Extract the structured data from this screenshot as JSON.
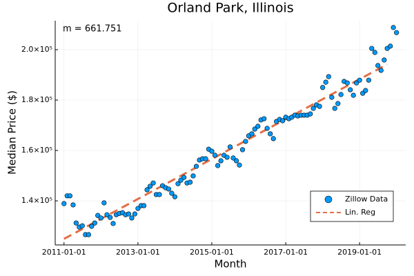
{
  "chart_data": {
    "type": "scatter",
    "title": "Orland Park, Illinois",
    "xlabel": "Month",
    "ylabel": "Median Price ($)",
    "annotation": "m = 661.751",
    "xlim": [
      "2010-10-06",
      "2020-04-01"
    ],
    "xticks": [
      "2011-01-01",
      "2013-01-01",
      "2015-01-01",
      "2017-01-01",
      "2019-01-01"
    ],
    "ylim": [
      122500,
      211500
    ],
    "yticks": [
      {
        "value": 140000,
        "label": "1.4×10⁵"
      },
      {
        "value": 160000,
        "label": "1.6×10⁵"
      },
      {
        "value": 180000,
        "label": "1.8×10⁵"
      },
      {
        "value": 200000,
        "label": "2.0×10⁵"
      }
    ],
    "grid": true,
    "legend": "bottom right",
    "series": [
      {
        "name": "Zillow Data",
        "color": "#009af9",
        "type": "scatter",
        "x": [
          "2011-01-01",
          "2011-02-01",
          "2011-03-01",
          "2011-04-01",
          "2011-05-01",
          "2011-06-01",
          "2011-07-01",
          "2011-08-01",
          "2011-09-01",
          "2011-10-01",
          "2011-11-01",
          "2011-12-01",
          "2012-01-01",
          "2012-02-01",
          "2012-03-01",
          "2012-04-01",
          "2012-05-01",
          "2012-06-01",
          "2012-07-01",
          "2012-08-01",
          "2012-09-01",
          "2012-10-01",
          "2012-11-01",
          "2012-12-01",
          "2013-01-01",
          "2013-02-01",
          "2013-03-01",
          "2013-04-01",
          "2013-05-01",
          "2013-06-01",
          "2013-07-01",
          "2013-08-01",
          "2013-09-01",
          "2013-10-01",
          "2013-11-01",
          "2013-12-01",
          "2014-01-01",
          "2014-02-01",
          "2014-03-01",
          "2014-04-01",
          "2014-05-01",
          "2014-06-01",
          "2014-07-01",
          "2014-08-01",
          "2014-09-01",
          "2014-10-01",
          "2014-11-01",
          "2014-12-01",
          "2015-01-01",
          "2015-02-01",
          "2015-03-01",
          "2015-04-01",
          "2015-05-01",
          "2015-06-01",
          "2015-07-01",
          "2015-08-01",
          "2015-09-01",
          "2015-10-01",
          "2015-11-01",
          "2015-12-01",
          "2016-01-01",
          "2016-02-01",
          "2016-03-01",
          "2016-04-01",
          "2016-05-01",
          "2016-06-01",
          "2016-07-01",
          "2016-08-01",
          "2016-09-01",
          "2016-10-01",
          "2016-11-01",
          "2016-12-01",
          "2017-01-01",
          "2017-02-01",
          "2017-03-01",
          "2017-04-01",
          "2017-05-01",
          "2017-06-01",
          "2017-07-01",
          "2017-08-01",
          "2017-09-01",
          "2017-10-01",
          "2017-11-01",
          "2017-12-01",
          "2018-01-01",
          "2018-02-01",
          "2018-03-01",
          "2018-04-01",
          "2018-05-01",
          "2018-06-01",
          "2018-07-01",
          "2018-08-01",
          "2018-09-01",
          "2018-10-01",
          "2018-11-01",
          "2018-12-01",
          "2019-01-01",
          "2019-02-01",
          "2019-03-01",
          "2019-04-01",
          "2019-05-01",
          "2019-06-01",
          "2019-07-01",
          "2019-08-01",
          "2019-09-01",
          "2019-10-01",
          "2019-11-01",
          "2019-12-01",
          "2020-01-01"
        ],
        "values": [
          138900,
          142000,
          142000,
          138400,
          131200,
          129600,
          130100,
          126600,
          126600,
          129900,
          131200,
          134200,
          133200,
          139200,
          134500,
          133400,
          131000,
          134500,
          135000,
          135300,
          134500,
          134800,
          133200,
          134800,
          137000,
          138100,
          138100,
          144400,
          145800,
          147100,
          142500,
          142500,
          146000,
          145200,
          144700,
          143000,
          141600,
          146800,
          148200,
          149300,
          147100,
          147400,
          149900,
          153700,
          156200,
          156700,
          156700,
          160500,
          159700,
          158100,
          154000,
          155900,
          158100,
          157300,
          161400,
          157000,
          155900,
          154200,
          160300,
          163600,
          165800,
          166600,
          168500,
          169600,
          172100,
          172600,
          168800,
          166600,
          164700,
          171500,
          172300,
          171800,
          173200,
          172600,
          173200,
          174000,
          173700,
          174000,
          174000,
          174000,
          174500,
          176700,
          178100,
          177500,
          185000,
          187100,
          189300,
          181100,
          176700,
          178600,
          182200,
          187400,
          186800,
          184100,
          181900,
          186800,
          187900,
          182700,
          183800,
          187900,
          200500,
          198900,
          193700,
          191800,
          195900,
          200500,
          201400,
          208800,
          206800
        ]
      },
      {
        "name": "Lin. Reg",
        "color": "#e26f46",
        "type": "line",
        "x": [
          "2011-01-01",
          "2019-10-01"
        ],
        "values": [
          124900,
          194200
        ]
      }
    ]
  }
}
